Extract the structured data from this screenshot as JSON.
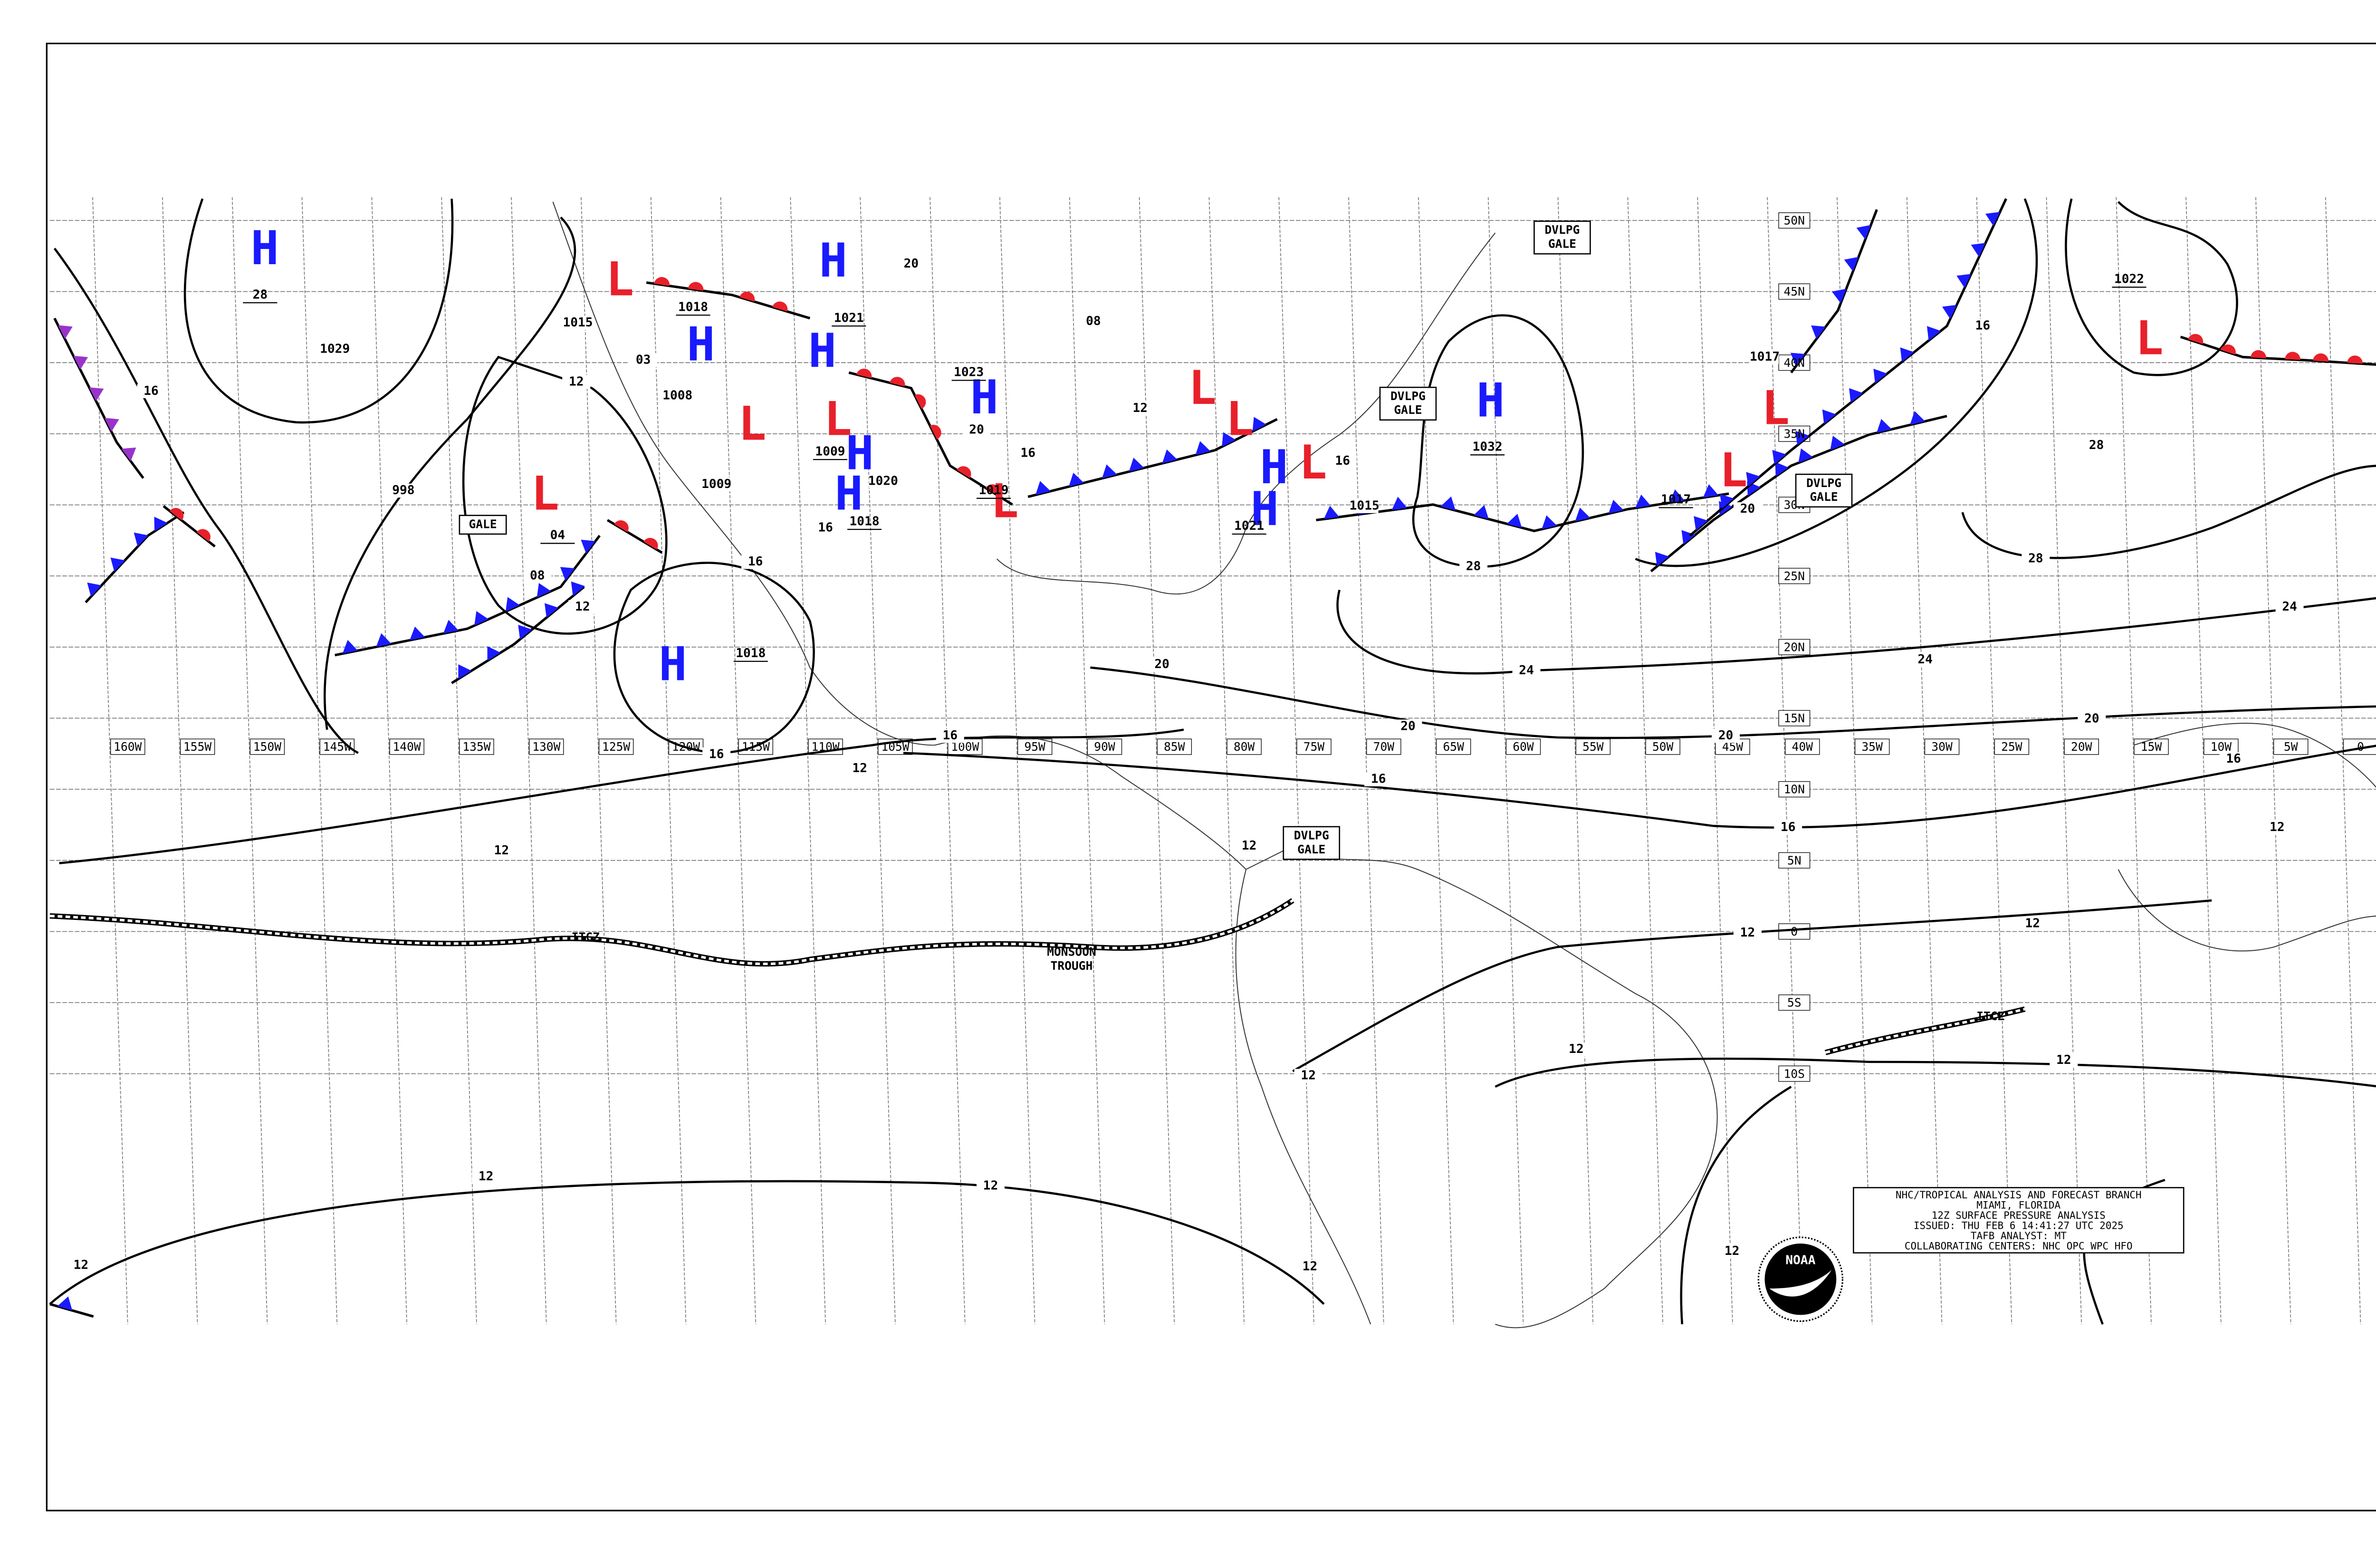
{
  "map": {
    "longitude_labels": [
      "160W",
      "155W",
      "150W",
      "145W",
      "140W",
      "135W",
      "130W",
      "125W",
      "120W",
      "115W",
      "110W",
      "105W",
      "100W",
      "95W",
      "90W",
      "85W",
      "80W",
      "75W",
      "70W",
      "65W",
      "60W",
      "55W",
      "50W",
      "45W",
      "40W",
      "35W",
      "30W",
      "25W",
      "20W",
      "15W",
      "10W",
      "5W",
      "0"
    ],
    "latitude_labels": [
      "50N",
      "45N",
      "40N",
      "35N",
      "30N",
      "25N",
      "20N",
      "15N",
      "10N",
      "5N",
      "0",
      "5S",
      "10S"
    ],
    "pressure_centers": [
      {
        "symbol": "H",
        "pressure": "28"
      },
      {
        "symbol": "L"
      },
      {
        "symbol": "H",
        "pressure": "1018"
      },
      {
        "symbol": "H"
      },
      {
        "symbol": "H",
        "pressure": "1021"
      },
      {
        "symbol": "L",
        "pressure": "04"
      },
      {
        "symbol": "L"
      },
      {
        "symbol": "L",
        "pressure": "1009"
      },
      {
        "symbol": "H"
      },
      {
        "symbol": "H",
        "pressure": "1018"
      },
      {
        "symbol": "H",
        "pressure": "1023"
      },
      {
        "symbol": "L",
        "pressure": "1019"
      },
      {
        "symbol": "L"
      },
      {
        "symbol": "L"
      },
      {
        "symbol": "L"
      },
      {
        "symbol": "H"
      },
      {
        "symbol": "H",
        "pressure": "1021"
      },
      {
        "symbol": "H",
        "pressure": "1032"
      },
      {
        "symbol": "L"
      },
      {
        "symbol": "L",
        "pressure": "1017"
      },
      {
        "symbol": "L",
        "pressure": "1022"
      },
      {
        "symbol": "H",
        "pressure": "1018"
      }
    ],
    "isobar_labels": [
      "12",
      "16",
      "1029",
      "998",
      "1015",
      "08",
      "12",
      "1008",
      "1009",
      "03",
      "16",
      "16",
      "1020",
      "20",
      "20",
      "16",
      "08",
      "12",
      "16",
      "20",
      "16",
      "1015",
      "28",
      "24",
      "20",
      "20",
      "24",
      "20",
      "1017",
      "16",
      "20",
      "28",
      "28",
      "24",
      "16",
      "12",
      "16",
      "12",
      "16",
      "16",
      "12",
      "12",
      "12",
      "12",
      "12",
      "12",
      "12",
      "12",
      "12",
      "12",
      "12",
      "12"
    ],
    "boxed_labels": [
      "GALE",
      "DVLPG GALE",
      "DVLPG GALE",
      "DVLPG GALE",
      "DVLPG GALE"
    ],
    "trough_labels": [
      "ITCZ",
      "MONSOON TROUGH",
      "ITCZ"
    ],
    "info_box": [
      "NHC/TROPICAL ANALYSIS AND FORECAST BRANCH",
      "MIAMI, FLORIDA",
      "12Z SURFACE PRESSURE ANALYSIS",
      "ISSUED: THU FEB 6 14:41:27 UTC 2025",
      "TAFB ANALYST: MT",
      "COLLABORATING CENTERS: NHC OPC WPC HFO"
    ],
    "logo": "NOAA"
  }
}
